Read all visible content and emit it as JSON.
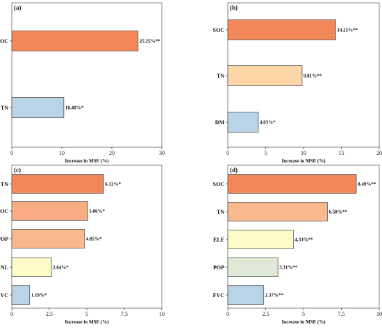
{
  "chart_data": [
    {
      "type": "bar",
      "orientation": "horizontal",
      "panel_label": "(a)",
      "categories": [
        "SOC",
        "TN"
      ],
      "values": [
        25.25,
        10.4
      ],
      "value_labels": [
        "25.25%**",
        "10.40%*"
      ],
      "colors": [
        "#f4875a",
        "#b9d3e7"
      ],
      "xlabel": "Increase in MSE (%)",
      "xlim": [
        0,
        30
      ],
      "xticks": [
        0,
        10,
        20,
        30
      ],
      "xtick_labels": [
        "0",
        "10",
        "20",
        "30"
      ],
      "grid": false
    },
    {
      "type": "bar",
      "orientation": "horizontal",
      "panel_label": "(b)",
      "categories": [
        "SOC",
        "TN",
        "DM"
      ],
      "values": [
        14.25,
        9.81,
        4.03
      ],
      "value_labels": [
        "14.25%**",
        "9.81%**",
        "4.03%*"
      ],
      "colors": [
        "#f4875a",
        "#fcd6a6",
        "#b9d3e7"
      ],
      "xlabel": "Increase in MSE (%)",
      "xlim": [
        0,
        20
      ],
      "xticks": [
        0,
        5,
        10,
        15,
        20
      ],
      "xtick_labels": [
        "0",
        "5",
        "10",
        "15",
        "20"
      ],
      "grid": false
    },
    {
      "type": "bar",
      "orientation": "horizontal",
      "panel_label": "(c)",
      "categories": [
        "TN",
        "SOC",
        "POP",
        "NL",
        "FVC"
      ],
      "values": [
        6.12,
        5.06,
        4.85,
        2.64,
        1.19
      ],
      "value_labels": [
        "6.12%*",
        "5.06%*",
        "4.85%*",
        "2.64%*",
        "1.19%*"
      ],
      "colors": [
        "#f4875a",
        "#f9ab82",
        "#f9b98d",
        "#fdfbc8",
        "#b9d3e7"
      ],
      "xlabel": "Increase in MSE (%)",
      "xlim": [
        0,
        10
      ],
      "xticks": [
        0,
        2.5,
        5,
        7.5,
        10
      ],
      "xtick_labels": [
        "0",
        "2.5",
        "5",
        "7.5",
        "10"
      ],
      "grid": false
    },
    {
      "type": "bar",
      "orientation": "horizontal",
      "panel_label": "(d)",
      "categories": [
        "SOC",
        "TN",
        "ELE",
        "POP",
        "FVC"
      ],
      "values": [
        8.49,
        6.58,
        4.33,
        3.31,
        2.37
      ],
      "value_labels": [
        "8.49%**",
        "6.58%**",
        "4.33%**",
        "3.31%**",
        "2.37%**"
      ],
      "colors": [
        "#f4875a",
        "#f9b98d",
        "#fdfbc8",
        "#dfe9d5",
        "#b9d3e7"
      ],
      "xlabel": "Increase in MSE (%)",
      "xlim": [
        0,
        10
      ],
      "xticks": [
        0,
        2.5,
        5,
        7.5,
        10
      ],
      "xtick_labels": [
        "0",
        "2.5",
        "5",
        "7.5",
        "10"
      ],
      "grid": false
    }
  ]
}
